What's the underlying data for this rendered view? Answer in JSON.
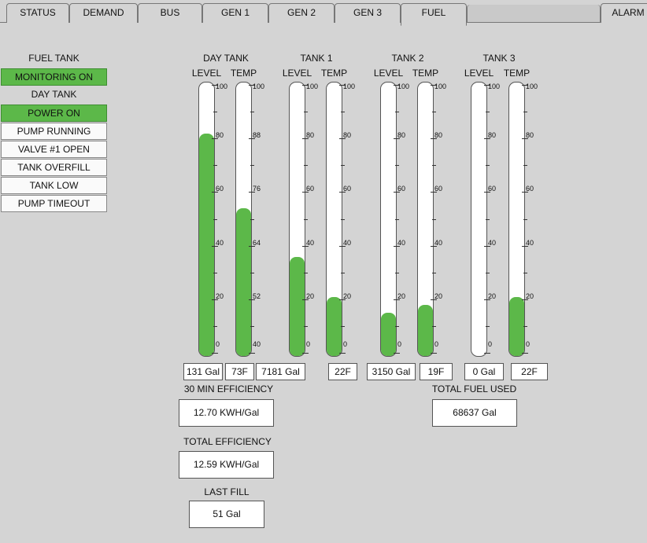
{
  "tabs": [
    {
      "label": "STATUS"
    },
    {
      "label": "DEMAND"
    },
    {
      "label": "BUS"
    },
    {
      "label": "GEN 1"
    },
    {
      "label": "GEN 2"
    },
    {
      "label": "GEN 3"
    },
    {
      "label": "FUEL"
    },
    {
      "label": ""
    },
    {
      "label": "ALARM"
    }
  ],
  "active_tab": "FUEL",
  "status_panel": {
    "fuel_tank_title": "FUEL TANK",
    "monitoring": "MONITORING ON",
    "day_tank_title": "DAY TANK",
    "power": "POWER ON",
    "pump_running": "PUMP RUNNING",
    "valve_open": "VALVE #1 OPEN",
    "tank_overfill": "TANK OVERFILL",
    "tank_low": "TANK LOW",
    "pump_timeout": "PUMP TIMEOUT"
  },
  "tanks": [
    {
      "title": "DAY TANK",
      "level_label": "LEVEL",
      "temp_label": "TEMP",
      "level_value": "131 Gal",
      "temp_value": "73F",
      "level_fill": 0.83,
      "temp_fill": 0.55,
      "level_scale": [
        "100",
        "80",
        "60",
        "40",
        "20",
        "0"
      ],
      "temp_scale": [
        "100",
        "88",
        "76",
        "64",
        "52",
        "40"
      ]
    },
    {
      "title": "TANK 1",
      "level_label": "LEVEL",
      "temp_label": "TEMP",
      "level_value": "7181 Gal",
      "temp_value": "22F",
      "level_fill": 0.37,
      "temp_fill": 0.22,
      "level_scale": [
        "100",
        "80",
        "60",
        "40",
        "20",
        "0"
      ],
      "temp_scale": [
        "100",
        "80",
        "60",
        "40",
        "20",
        "0"
      ]
    },
    {
      "title": "TANK 2",
      "level_label": "LEVEL",
      "temp_label": "TEMP",
      "level_value": "3150 Gal",
      "temp_value": "19F",
      "level_fill": 0.16,
      "temp_fill": 0.19,
      "level_scale": [
        "100",
        "80",
        "60",
        "40",
        "20",
        "0"
      ],
      "temp_scale": [
        "100",
        "80",
        "60",
        "40",
        "20",
        "0"
      ]
    },
    {
      "title": "TANK 3",
      "level_label": "LEVEL",
      "temp_label": "TEMP",
      "level_value": "0 Gal",
      "temp_value": "22F",
      "level_fill": 0.0,
      "temp_fill": 0.22,
      "level_scale": [
        "100",
        "80",
        "60",
        "40",
        "20",
        "0"
      ],
      "temp_scale": [
        "100",
        "80",
        "60",
        "40",
        "20",
        "0"
      ]
    }
  ],
  "efficiency": {
    "min30_label": "30 MIN EFFICIENCY",
    "min30_value": "12.70 KWH/Gal",
    "total_label": "TOTAL EFFICIENCY",
    "total_value": "12.59 KWH/Gal",
    "last_fill_label": "LAST FILL",
    "last_fill_value": "51 Gal"
  },
  "fuel_used": {
    "label": "TOTAL FUEL USED",
    "value": "68637 Gal"
  },
  "colors": {
    "active_green": "#5cb849",
    "background": "#d4d4d4"
  }
}
